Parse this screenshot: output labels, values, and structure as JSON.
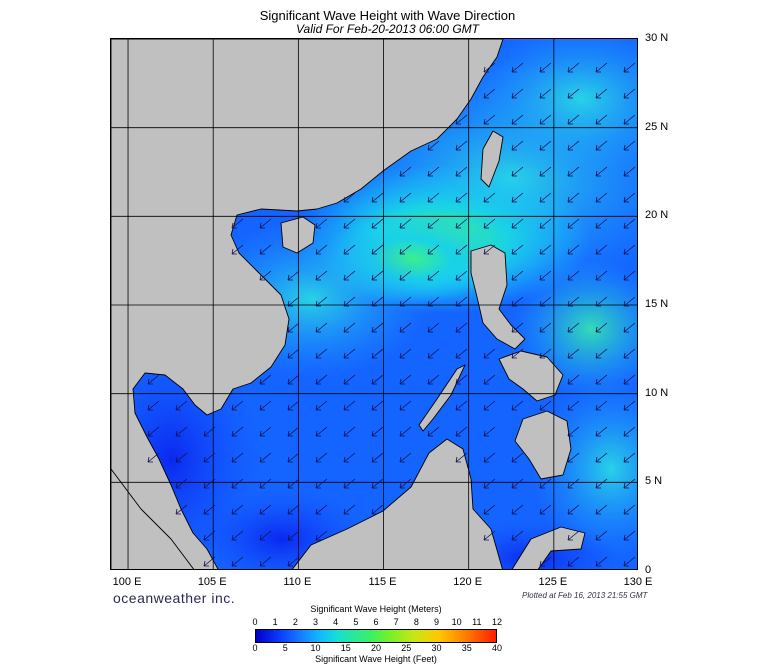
{
  "header": {
    "title": "Significant Wave Height with Wave Direction",
    "subtitle": "Valid For Feb-20-2013 06:00 GMT"
  },
  "axes": {
    "lon_labels": [
      "100 E",
      "105 E",
      "110 E",
      "115 E",
      "120 E",
      "125 E",
      "130 E"
    ],
    "lat_labels": [
      "30 N",
      "25 N",
      "20 N",
      "15 N",
      "10 N",
      "5 N",
      "0"
    ],
    "lon_range": [
      99,
      130
    ],
    "lat_range": [
      0,
      30
    ]
  },
  "footer": {
    "brand": "oceanweather inc.",
    "plotted": "Plotted at Feb 16, 2013 21:55 GMT"
  },
  "legend": {
    "title_meters": "Significant Wave Height (Meters)",
    "title_feet": "Significant Wave Height (Feet)",
    "meters_ticks": [
      "0",
      "1",
      "2",
      "3",
      "4",
      "5",
      "6",
      "7",
      "8",
      "9",
      "10",
      "11",
      "12"
    ],
    "feet_ticks": [
      "0",
      "5",
      "10",
      "15",
      "20",
      "25",
      "30",
      "35",
      "40"
    ]
  },
  "colors": {
    "land": "#c0c0c0",
    "ocean_deep": "#0a14e6",
    "ocean_low": "#1450ff",
    "ocean_mid": "#1e96ff",
    "ocean_high": "#19c8ff",
    "ocean_peak": "#32e68c",
    "grid": "#000000",
    "arrow": "#101050"
  },
  "map": {
    "wave_direction": "from northeast to southwest"
  }
}
